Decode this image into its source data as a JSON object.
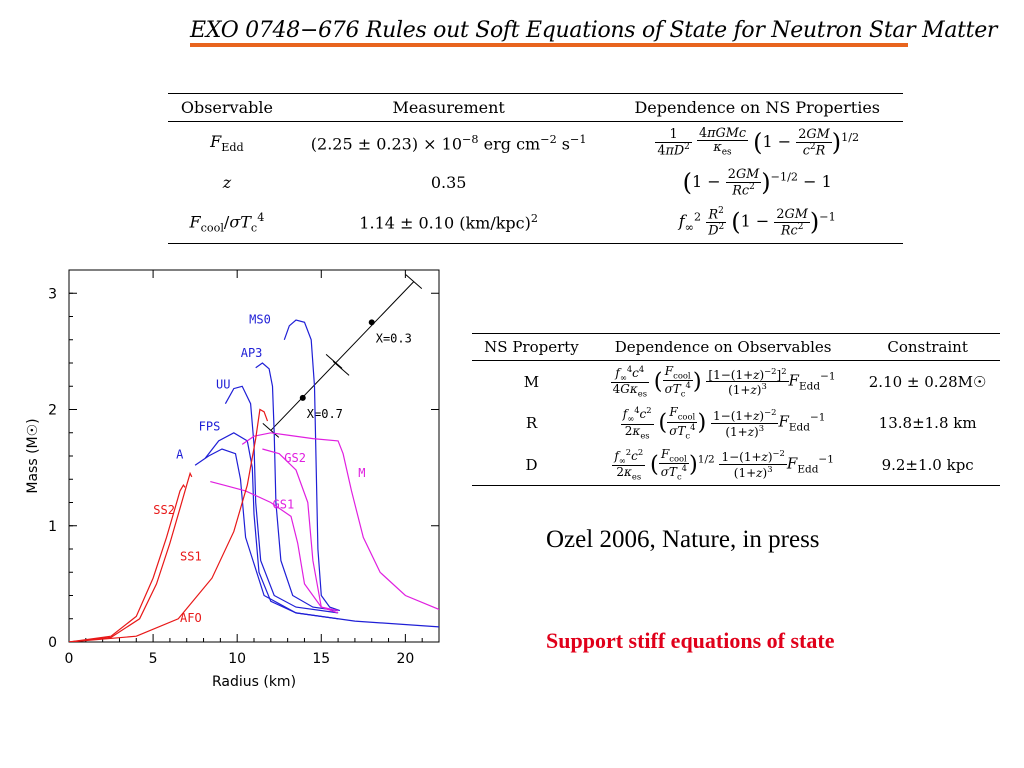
{
  "title": "EXO 0748−676 Rules out Soft Equations of State for Neutron Star Matter",
  "obs_table": {
    "headers": [
      "Observable",
      "Measurement",
      "Dependence on NS Properties"
    ],
    "rows": [
      {
        "observable": "F_Edd",
        "measurement": "(2.25 ± 0.23) × 10^−8 erg cm^−2 s^−1",
        "dependence": "(1/4πD²)(4πGMc/κ_es)(1 − 2GM/c²R)^1/2"
      },
      {
        "observable": "z",
        "measurement": "0.35",
        "dependence": "(1 − 2GM/Rc²)^−1/2 − 1"
      },
      {
        "observable": "F_cool/σT_c^4",
        "measurement": "1.14 ± 0.10 (km/kpc)²",
        "dependence": "f∞² (R²/D²)(1 − 2GM/Rc²)^−1"
      }
    ]
  },
  "ns_table": {
    "headers": [
      "NS Property",
      "Dependence on Observables",
      "Constraint"
    ],
    "rows": [
      {
        "property": "M",
        "constraint": "2.10 ± 0.28M☉"
      },
      {
        "property": "R",
        "constraint": "13.8±1.8 km"
      },
      {
        "property": "D",
        "constraint": "9.2±1.0 kpc"
      }
    ]
  },
  "credit": "Ozel 2006, Nature, in press",
  "conclusion": "Support stiff equations of state",
  "colors": {
    "accent_rule": "#e8641e",
    "conclusion": "#e0001a",
    "blue": "#1f1fd6",
    "red": "#e81818",
    "magenta": "#e020e0"
  },
  "chart_data": {
    "type": "line",
    "xlabel": "Radius (km)",
    "ylabel": "Mass (M☉)",
    "xlim": [
      0,
      22
    ],
    "ylim": [
      0,
      3.2
    ],
    "xticks": [
      0,
      5,
      10,
      15,
      20
    ],
    "yticks": [
      0,
      1,
      2,
      3
    ],
    "series": [
      {
        "name": "MS0",
        "color": "blue",
        "points": [
          [
            16.1,
            0.27
          ],
          [
            15.5,
            0.3
          ],
          [
            15.0,
            0.4
          ],
          [
            14.8,
            0.8
          ],
          [
            14.7,
            1.5
          ],
          [
            14.6,
            2.2
          ],
          [
            14.4,
            2.6
          ],
          [
            14.0,
            2.75
          ],
          [
            13.5,
            2.77
          ],
          [
            13.1,
            2.72
          ],
          [
            12.8,
            2.6
          ]
        ]
      },
      {
        "name": "AP3",
        "color": "blue",
        "points": [
          [
            16.0,
            0.27
          ],
          [
            14.5,
            0.3
          ],
          [
            13.3,
            0.4
          ],
          [
            12.6,
            0.7
          ],
          [
            12.3,
            1.2
          ],
          [
            12.2,
            1.8
          ],
          [
            12.1,
            2.2
          ],
          [
            11.9,
            2.35
          ],
          [
            11.5,
            2.4
          ],
          [
            11.1,
            2.36
          ]
        ]
      },
      {
        "name": "UU",
        "color": "blue",
        "points": [
          [
            16.0,
            0.25
          ],
          [
            13.5,
            0.3
          ],
          [
            12.2,
            0.4
          ],
          [
            11.4,
            0.7
          ],
          [
            11.1,
            1.2
          ],
          [
            11.0,
            1.7
          ],
          [
            10.8,
            2.05
          ],
          [
            10.3,
            2.2
          ],
          [
            9.8,
            2.18
          ],
          [
            9.3,
            2.05
          ]
        ]
      },
      {
        "name": "FPS",
        "color": "blue",
        "points": [
          [
            16.0,
            0.2
          ],
          [
            13.5,
            0.25
          ],
          [
            12.0,
            0.35
          ],
          [
            11.3,
            0.6
          ],
          [
            11.0,
            1.1
          ],
          [
            10.9,
            1.5
          ],
          [
            10.6,
            1.73
          ],
          [
            9.8,
            1.8
          ],
          [
            8.9,
            1.73
          ],
          [
            8.1,
            1.58
          ]
        ]
      },
      {
        "name": "A",
        "color": "blue",
        "points": [
          [
            22.0,
            0.13
          ],
          [
            17.0,
            0.18
          ],
          [
            13.5,
            0.25
          ],
          [
            11.6,
            0.4
          ],
          [
            10.5,
            0.9
          ],
          [
            10.2,
            1.4
          ],
          [
            9.9,
            1.62
          ],
          [
            9.1,
            1.66
          ],
          [
            8.3,
            1.6
          ],
          [
            7.5,
            1.52
          ]
        ]
      },
      {
        "name": "GS2",
        "color": "magenta",
        "points": [
          [
            16.0,
            0.27
          ],
          [
            15.0,
            0.3
          ],
          [
            14.5,
            0.7
          ],
          [
            14.2,
            1.2
          ],
          [
            13.5,
            1.48
          ],
          [
            12.5,
            1.62
          ],
          [
            11.5,
            1.66
          ]
        ]
      },
      {
        "name": "GS1",
        "color": "magenta",
        "points": [
          [
            16.0,
            0.25
          ],
          [
            15.0,
            0.3
          ],
          [
            14.0,
            0.5
          ],
          [
            13.6,
            0.85
          ],
          [
            13.2,
            1.08
          ],
          [
            12.0,
            1.2
          ],
          [
            10.5,
            1.3
          ],
          [
            9.2,
            1.35
          ],
          [
            8.4,
            1.38
          ]
        ]
      },
      {
        "name": "M",
        "color": "magenta",
        "points": [
          [
            22.0,
            0.28
          ],
          [
            20.0,
            0.4
          ],
          [
            18.5,
            0.6
          ],
          [
            17.5,
            0.9
          ],
          [
            16.8,
            1.3
          ],
          [
            16.3,
            1.62
          ],
          [
            16.0,
            1.73
          ],
          [
            14.5,
            1.75
          ],
          [
            13.0,
            1.78
          ],
          [
            12.0,
            1.8
          ],
          [
            11.0,
            1.77
          ],
          [
            10.3,
            1.7
          ]
        ]
      },
      {
        "name": "SS2",
        "color": "red",
        "points": [
          [
            0.0,
            0.0
          ],
          [
            2.5,
            0.05
          ],
          [
            4.0,
            0.22
          ],
          [
            5.0,
            0.55
          ],
          [
            5.8,
            0.9
          ],
          [
            6.3,
            1.15
          ],
          [
            6.6,
            1.3
          ],
          [
            6.8,
            1.35
          ],
          [
            6.9,
            1.33
          ]
        ]
      },
      {
        "name": "SS1",
        "color": "red",
        "points": [
          [
            0.0,
            0.0
          ],
          [
            2.5,
            0.04
          ],
          [
            4.2,
            0.2
          ],
          [
            5.2,
            0.5
          ],
          [
            6.0,
            0.85
          ],
          [
            6.6,
            1.15
          ],
          [
            7.0,
            1.35
          ],
          [
            7.2,
            1.45
          ],
          [
            7.3,
            1.42
          ]
        ]
      },
      {
        "name": "AFO",
        "color": "red",
        "points": [
          [
            0.0,
            0.0
          ],
          [
            4.0,
            0.05
          ],
          [
            6.5,
            0.2
          ],
          [
            8.5,
            0.55
          ],
          [
            9.8,
            0.95
          ],
          [
            10.6,
            1.35
          ],
          [
            11.1,
            1.75
          ],
          [
            11.35,
            2.0
          ],
          [
            11.6,
            1.98
          ],
          [
            11.8,
            1.9
          ]
        ]
      }
    ],
    "annotations": [
      "X=0.3",
      "X=0.7"
    ],
    "constraint_line": {
      "from": [
        12.0,
        1.82
      ],
      "to": [
        20.5,
        3.1
      ],
      "markers": [
        {
          "label": "X=0.3",
          "at": [
            18.0,
            2.75
          ]
        },
        {
          "label": "X=0.7",
          "at": [
            13.9,
            2.1
          ]
        }
      ]
    }
  }
}
